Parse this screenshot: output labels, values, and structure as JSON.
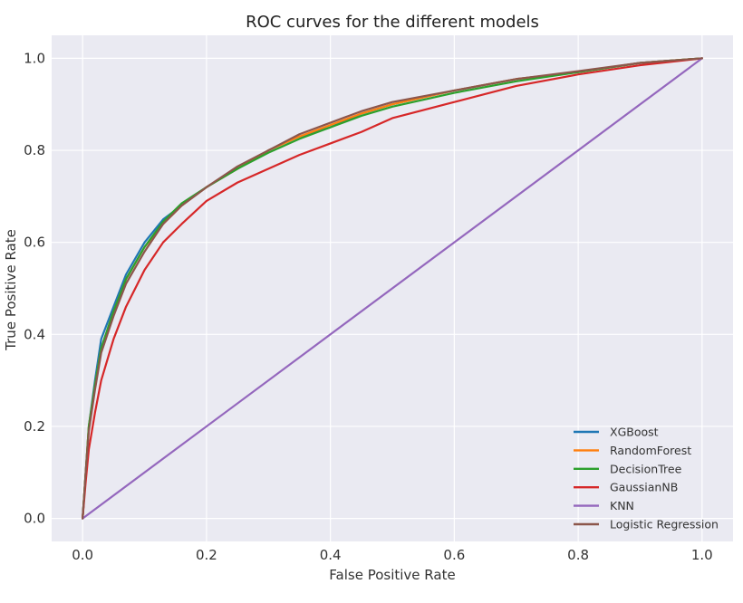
{
  "chart_data": {
    "type": "line",
    "title": "ROC curves for the different models",
    "xlabel": "False Positive Rate",
    "ylabel": "True Positive Rate",
    "xlim": [
      -0.05,
      1.05
    ],
    "ylim": [
      -0.05,
      1.05
    ],
    "xticks": [
      0.0,
      0.2,
      0.4,
      0.6,
      0.8,
      1.0
    ],
    "xtick_labels": [
      "0.0",
      "0.2",
      "0.4",
      "0.6",
      "0.8",
      "1.0"
    ],
    "yticks": [
      0.0,
      0.2,
      0.4,
      0.6,
      0.8,
      1.0
    ],
    "ytick_labels": [
      "0.0",
      "0.2",
      "0.4",
      "0.6",
      "0.8",
      "1.0"
    ],
    "grid": true,
    "legend_position": "lower-right",
    "series": [
      {
        "name": "XGBoost",
        "color": "#1f77b4",
        "x": [
          0,
          0.005,
          0.01,
          0.02,
          0.03,
          0.05,
          0.07,
          0.1,
          0.13,
          0.16,
          0.2,
          0.25,
          0.3,
          0.35,
          0.4,
          0.45,
          0.5,
          0.6,
          0.7,
          0.8,
          0.9,
          1.0
        ],
        "y": [
          0,
          0.1,
          0.2,
          0.3,
          0.39,
          0.46,
          0.53,
          0.6,
          0.65,
          0.68,
          0.72,
          0.76,
          0.8,
          0.83,
          0.85,
          0.88,
          0.9,
          0.93,
          0.955,
          0.97,
          0.99,
          1.0
        ]
      },
      {
        "name": "RandomForest",
        "color": "#ff7f0e",
        "x": [
          0,
          0.005,
          0.01,
          0.02,
          0.03,
          0.05,
          0.07,
          0.1,
          0.13,
          0.16,
          0.2,
          0.25,
          0.3,
          0.35,
          0.4,
          0.45,
          0.5,
          0.6,
          0.7,
          0.8,
          0.9,
          1.0
        ],
        "y": [
          0,
          0.1,
          0.2,
          0.29,
          0.37,
          0.45,
          0.52,
          0.59,
          0.64,
          0.68,
          0.72,
          0.76,
          0.8,
          0.83,
          0.855,
          0.88,
          0.9,
          0.93,
          0.955,
          0.97,
          0.99,
          1.0
        ]
      },
      {
        "name": "DecisionTree",
        "color": "#2ca02c",
        "x": [
          0,
          0.005,
          0.01,
          0.02,
          0.03,
          0.05,
          0.07,
          0.1,
          0.13,
          0.16,
          0.2,
          0.25,
          0.3,
          0.35,
          0.4,
          0.45,
          0.5,
          0.6,
          0.7,
          0.8,
          0.9,
          1.0
        ],
        "y": [
          0,
          0.1,
          0.2,
          0.29,
          0.37,
          0.45,
          0.52,
          0.59,
          0.645,
          0.685,
          0.72,
          0.76,
          0.795,
          0.825,
          0.85,
          0.875,
          0.895,
          0.925,
          0.95,
          0.97,
          0.99,
          1.0
        ]
      },
      {
        "name": "GaussianNB",
        "color": "#d62728",
        "x": [
          0,
          0.005,
          0.01,
          0.02,
          0.03,
          0.05,
          0.07,
          0.1,
          0.13,
          0.16,
          0.2,
          0.25,
          0.3,
          0.35,
          0.4,
          0.45,
          0.5,
          0.6,
          0.7,
          0.8,
          0.9,
          1.0
        ],
        "y": [
          0,
          0.08,
          0.15,
          0.23,
          0.3,
          0.39,
          0.46,
          0.54,
          0.6,
          0.64,
          0.69,
          0.73,
          0.76,
          0.79,
          0.815,
          0.84,
          0.87,
          0.905,
          0.94,
          0.965,
          0.985,
          1.0
        ]
      },
      {
        "name": "KNN",
        "color": "#9467bd",
        "x": [
          0,
          1.0
        ],
        "y": [
          0,
          1.0
        ]
      },
      {
        "name": "Logistic Regression",
        "color": "#8c564b",
        "x": [
          0,
          0.005,
          0.01,
          0.02,
          0.03,
          0.05,
          0.07,
          0.1,
          0.13,
          0.16,
          0.2,
          0.25,
          0.3,
          0.35,
          0.4,
          0.45,
          0.5,
          0.6,
          0.7,
          0.8,
          0.9,
          1.0
        ],
        "y": [
          0,
          0.1,
          0.19,
          0.28,
          0.36,
          0.44,
          0.51,
          0.58,
          0.64,
          0.68,
          0.72,
          0.765,
          0.8,
          0.835,
          0.86,
          0.885,
          0.905,
          0.93,
          0.955,
          0.972,
          0.99,
          1.0
        ]
      }
    ]
  }
}
